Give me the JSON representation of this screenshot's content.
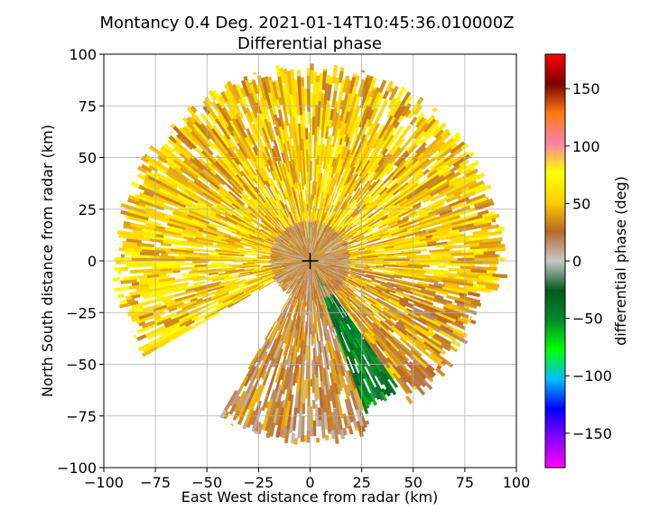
{
  "chart_data": {
    "type": "heatmap",
    "title": "Montancy 0.4 Deg. 2021-01-14T10:45:36.010000Z",
    "subtitle": "Differential phase",
    "xlabel": "East West distance from radar (km)",
    "ylabel": "North South distance from radar (km)",
    "xlim": [
      -100,
      100
    ],
    "ylim": [
      -100,
      100
    ],
    "xticks": [
      -100,
      -75,
      -50,
      -25,
      0,
      25,
      50,
      75,
      100
    ],
    "yticks": [
      -100,
      -75,
      -50,
      -25,
      0,
      25,
      50,
      75,
      100
    ],
    "xtick_labels": [
      "−100",
      "−75",
      "−50",
      "−25",
      "0",
      "25",
      "50",
      "75",
      "100"
    ],
    "ytick_labels": [
      "−100",
      "−75",
      "−50",
      "−25",
      "0",
      "25",
      "50",
      "75",
      "100"
    ],
    "grid": true,
    "radar_range_km": 96,
    "radar_origin": [
      0,
      0
    ],
    "colorbar": {
      "label": "differential phase (deg)",
      "range": [
        -180,
        180
      ],
      "ticks": [
        -150,
        -100,
        -50,
        0,
        50,
        100,
        150
      ],
      "tick_labels": [
        "−150",
        "−100",
        "−50",
        "0",
        "50",
        "100",
        "150"
      ],
      "colors": [
        "#ff00ff",
        "#8800ff",
        "#0000ff",
        "#00bfff",
        "#00ff00",
        "#008a2e",
        "#005a1e",
        "#c8c8c8",
        "#b8682a",
        "#ffd000",
        "#ffff00",
        "#ff80a8",
        "#ff7a10",
        "#7a0000",
        "#ff0000"
      ]
    },
    "sector_fields": [
      {
        "az_start": 0,
        "az_end": 100,
        "r_min": 2,
        "r_max": 96,
        "phase_deg": 52
      },
      {
        "az_start": 100,
        "az_end": 145,
        "r_min": 2,
        "r_max": 86,
        "phase_deg": 38
      },
      {
        "az_start": 145,
        "az_end": 160,
        "r_min": 5,
        "r_max": 80,
        "phase_deg": -40
      },
      {
        "az_start": 160,
        "az_end": 210,
        "r_min": 5,
        "r_max": 90,
        "phase_deg": 25
      },
      {
        "az_start": 240,
        "az_end": 300,
        "r_min": 4,
        "r_max": 96,
        "phase_deg": 55
      },
      {
        "az_start": 300,
        "az_end": 360,
        "r_min": 3,
        "r_max": 96,
        "phase_deg": 50
      },
      {
        "az_start": 0,
        "az_end": 360,
        "r_min": 0,
        "r_max": 20,
        "phase_deg": 20
      }
    ]
  }
}
